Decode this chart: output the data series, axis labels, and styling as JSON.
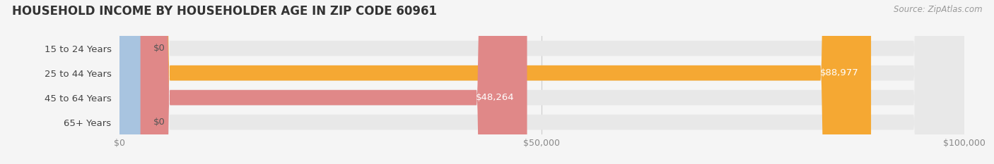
{
  "title": "HOUSEHOLD INCOME BY HOUSEHOLDER AGE IN ZIP CODE 60961",
  "source": "Source: ZipAtlas.com",
  "categories": [
    "15 to 24 Years",
    "25 to 44 Years",
    "45 to 64 Years",
    "65+ Years"
  ],
  "values": [
    0,
    88977,
    48264,
    0
  ],
  "bar_colors": [
    "#f4a0b0",
    "#f5a833",
    "#e08888",
    "#a8c4e0"
  ],
  "value_labels": [
    "$0",
    "$88,977",
    "$48,264",
    "$0"
  ],
  "xlim": [
    0,
    100000
  ],
  "xticks": [
    0,
    50000,
    100000
  ],
  "xticklabels": [
    "$0",
    "$50,000",
    "$100,000"
  ],
  "bg_color": "#f5f5f5",
  "bar_bg_color": "#e8e8e8",
  "title_fontsize": 12,
  "label_fontsize": 9.5,
  "tick_fontsize": 9,
  "source_fontsize": 8.5
}
